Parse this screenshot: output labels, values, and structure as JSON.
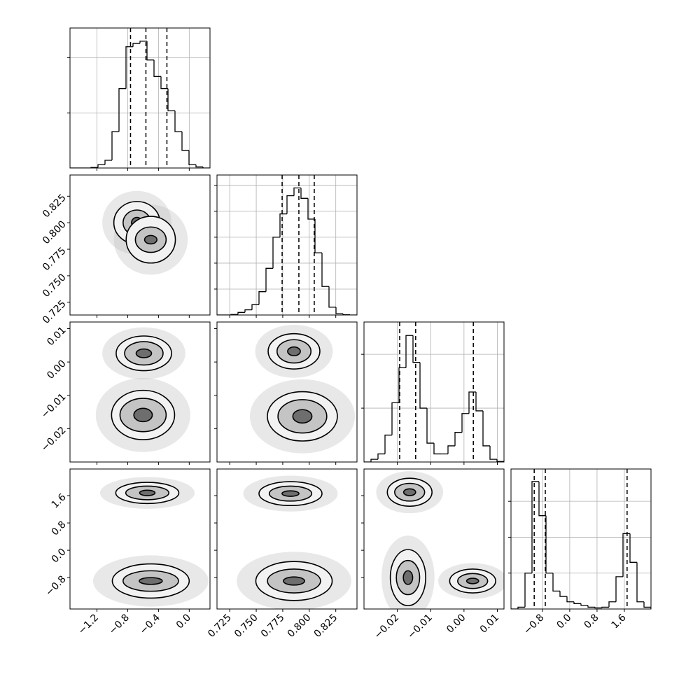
{
  "chart_data": {
    "type": "corner",
    "grid": true,
    "color": "#000000",
    "level_colors": [
      "#f2f2f2",
      "#c4c4c4",
      "#6e6e6e"
    ],
    "cloud_color": "#bdbdbd",
    "axes": [
      {
        "lim": [
          -1.55,
          0.27
        ],
        "ticks": [
          {
            "value": -1.2,
            "label": "−1.2"
          },
          {
            "value": -0.8,
            "label": "−0.8"
          },
          {
            "value": -0.4,
            "label": "−0.4"
          },
          {
            "value": 0,
            "label": "0.0"
          }
        ]
      },
      {
        "lim": [
          0.713,
          0.845
        ],
        "ticks": [
          0.725,
          {
            "value": 0.75,
            "label": "0.750"
          },
          0.775,
          {
            "value": 0.8,
            "label": "0.800"
          },
          0.825
        ]
      },
      {
        "lim": [
          -0.03,
          0.012
        ],
        "ticks": [
          {
            "value": -0.02,
            "label": "−0.02"
          },
          {
            "value": -0.01,
            "label": "−0.01"
          },
          {
            "value": 0,
            "label": "0.00"
          },
          0.01
        ]
      },
      {
        "lim": [
          -1.72,
          2.38
        ],
        "ticks": [
          {
            "value": -0.8,
            "label": "−0.8"
          },
          {
            "value": 0,
            "label": "0.0"
          },
          0.8,
          1.6
        ]
      }
    ],
    "histograms": [
      {
        "bins": [
          -1.55,
          -1.459,
          -1.368,
          -1.277,
          -1.186,
          -1.095,
          -1.004,
          -0.913,
          -0.822,
          -0.731,
          -0.64,
          -0.549,
          -0.458,
          -0.367,
          -0.276,
          -0.185,
          -0.094,
          -0.003,
          0.088,
          0.179,
          0.27
        ],
        "counts": [
          0,
          0,
          0,
          0.005,
          0.03,
          0.07,
          0.33,
          0.72,
          1.1,
          1.13,
          1.15,
          0.98,
          0.83,
          0.72,
          0.52,
          0.33,
          0.16,
          0.03,
          0.01,
          0
        ],
        "quantiles": [
          -0.763,
          -0.563,
          -0.29
        ],
        "ylim": [
          0,
          1.27
        ],
        "yticks": [
          0.5,
          1
        ]
      },
      {
        "bins": [
          0.713,
          0.7196,
          0.7262,
          0.7328,
          0.7394,
          0.746,
          0.7526,
          0.7592,
          0.7658,
          0.7724,
          0.779,
          0.7856,
          0.7922,
          0.7988,
          0.8054,
          0.812,
          0.8186,
          0.8252,
          0.8318,
          0.8384,
          0.845
        ],
        "counts": [
          0,
          0,
          0.02,
          0.1,
          0.2,
          0.4,
          0.9,
          1.8,
          3,
          3.9,
          4.6,
          4.9,
          4.5,
          3.7,
          2.4,
          1.1,
          0.3,
          0.05,
          0.01,
          0
        ],
        "quantiles": [
          0.7744,
          0.7902,
          0.8047
        ],
        "ylim": [
          0,
          5.4
        ],
        "yticks": [
          1,
          2,
          3,
          4,
          5
        ]
      },
      {
        "bins": [
          -0.03,
          -0.0279,
          -0.0258,
          -0.0237,
          -0.0216,
          -0.0195,
          -0.0174,
          -0.0153,
          -0.0132,
          -0.0111,
          -0.009,
          -0.0069,
          -0.0048,
          -0.0027,
          -0.0006,
          0.0015,
          0.0036,
          0.0057,
          0.0078,
          0.0099,
          0.012
        ],
        "counts": [
          0,
          0.05,
          0.15,
          0.5,
          1.1,
          1.75,
          2.35,
          1.85,
          1,
          0.35,
          0.15,
          0.15,
          0.3,
          0.55,
          0.9,
          1.3,
          0.95,
          0.3,
          0.05,
          0.01
        ],
        "quantiles": [
          -0.0193,
          -0.0145,
          0.0028
        ],
        "ylim": [
          0,
          2.6
        ],
        "yticks": [
          1,
          2
        ]
      },
      {
        "bins": [
          -1.72,
          -1.515,
          -1.31,
          -1.105,
          -0.9,
          -0.695,
          -0.49,
          -0.285,
          -0.08,
          0.125,
          0.33,
          0.535,
          0.74,
          0.945,
          1.15,
          1.355,
          1.56,
          1.765,
          1.97,
          2.175,
          2.38
        ],
        "counts": [
          0,
          0.05,
          1,
          3.55,
          2.6,
          1,
          0.5,
          0.35,
          0.2,
          0.15,
          0.1,
          0.05,
          0.03,
          0.05,
          0.2,
          0.9,
          2.1,
          1.3,
          0.2,
          0.05
        ],
        "quantiles": [
          -1.04,
          -0.715,
          1.68
        ],
        "ylim": [
          0,
          3.9
        ],
        "yticks": [
          1,
          2,
          3
        ]
      }
    ],
    "density": [
      {
        "x": 0,
        "y": 1,
        "modes": [
          {
            "x": -0.68,
            "y": 0.8,
            "rx": [
              0.3,
              0.18,
              0.07
            ],
            "ry": [
              0.02,
              0.012,
              0.005
            ]
          },
          {
            "x": -0.5,
            "y": 0.784,
            "rx": [
              0.32,
              0.2,
              0.08
            ],
            "ry": [
              0.022,
              0.012,
              0.004
            ]
          }
        ]
      },
      {
        "x": 0,
        "y": 2,
        "modes": [
          {
            "x": -0.59,
            "y": 0.0026,
            "rx": [
              0.36,
              0.25,
              0.1
            ],
            "ry": [
              0.0052,
              0.0035,
              0.0013
            ]
          },
          {
            "x": -0.6,
            "y": -0.0159,
            "rx": [
              0.41,
              0.3,
              0.12
            ],
            "ry": [
              0.0074,
              0.005,
              0.002
            ]
          }
        ]
      },
      {
        "x": 1,
        "y": 2,
        "modes": [
          {
            "x": 0.7856,
            "y": 0.0032,
            "rx": [
              0.0244,
              0.016,
              0.006
            ],
            "ry": [
              0.0053,
              0.0035,
              0.0013
            ]
          },
          {
            "x": 0.7935,
            "y": -0.0163,
            "rx": [
              0.033,
              0.023,
              0.009
            ],
            "ry": [
              0.0074,
              0.005,
              0.002
            ]
          }
        ]
      },
      {
        "x": 0,
        "y": 3,
        "modes": [
          {
            "x": -0.545,
            "y": 1.68,
            "rx": [
              0.41,
              0.28,
              0.1
            ],
            "ry": [
              0.31,
              0.2,
              0.08
            ]
          },
          {
            "x": -0.5,
            "y": -0.9,
            "rx": [
              0.5,
              0.36,
              0.15
            ],
            "ry": [
              0.5,
              0.3,
              0.1
            ]
          }
        ]
      },
      {
        "x": 1,
        "y": 3,
        "modes": [
          {
            "x": 0.7823,
            "y": 1.66,
            "rx": [
              0.0297,
              0.02,
              0.008
            ],
            "ry": [
              0.35,
              0.22,
              0.08
            ]
          },
          {
            "x": 0.7856,
            "y": -0.9,
            "rx": [
              0.036,
              0.025,
              0.01
            ],
            "ry": [
              0.57,
              0.35,
              0.12
            ]
          }
        ]
      },
      {
        "x": 2,
        "y": 3,
        "modes": [
          {
            "x": -0.0163,
            "y": 1.7,
            "rx": [
              0.0067,
              0.0045,
              0.0018
            ],
            "ry": [
              0.41,
              0.26,
              0.1
            ]
          },
          {
            "x": -0.0168,
            "y": -0.8,
            "rx": [
              0.0053,
              0.0035,
              0.0014
            ],
            "ry": [
              0.82,
              0.5,
              0.2
            ]
          },
          {
            "x": 0.0026,
            "y": -0.9,
            "rx": [
              0.0069,
              0.0045,
              0.0018
            ],
            "ry": [
              0.35,
              0.22,
              0.08
            ]
          }
        ]
      }
    ]
  }
}
